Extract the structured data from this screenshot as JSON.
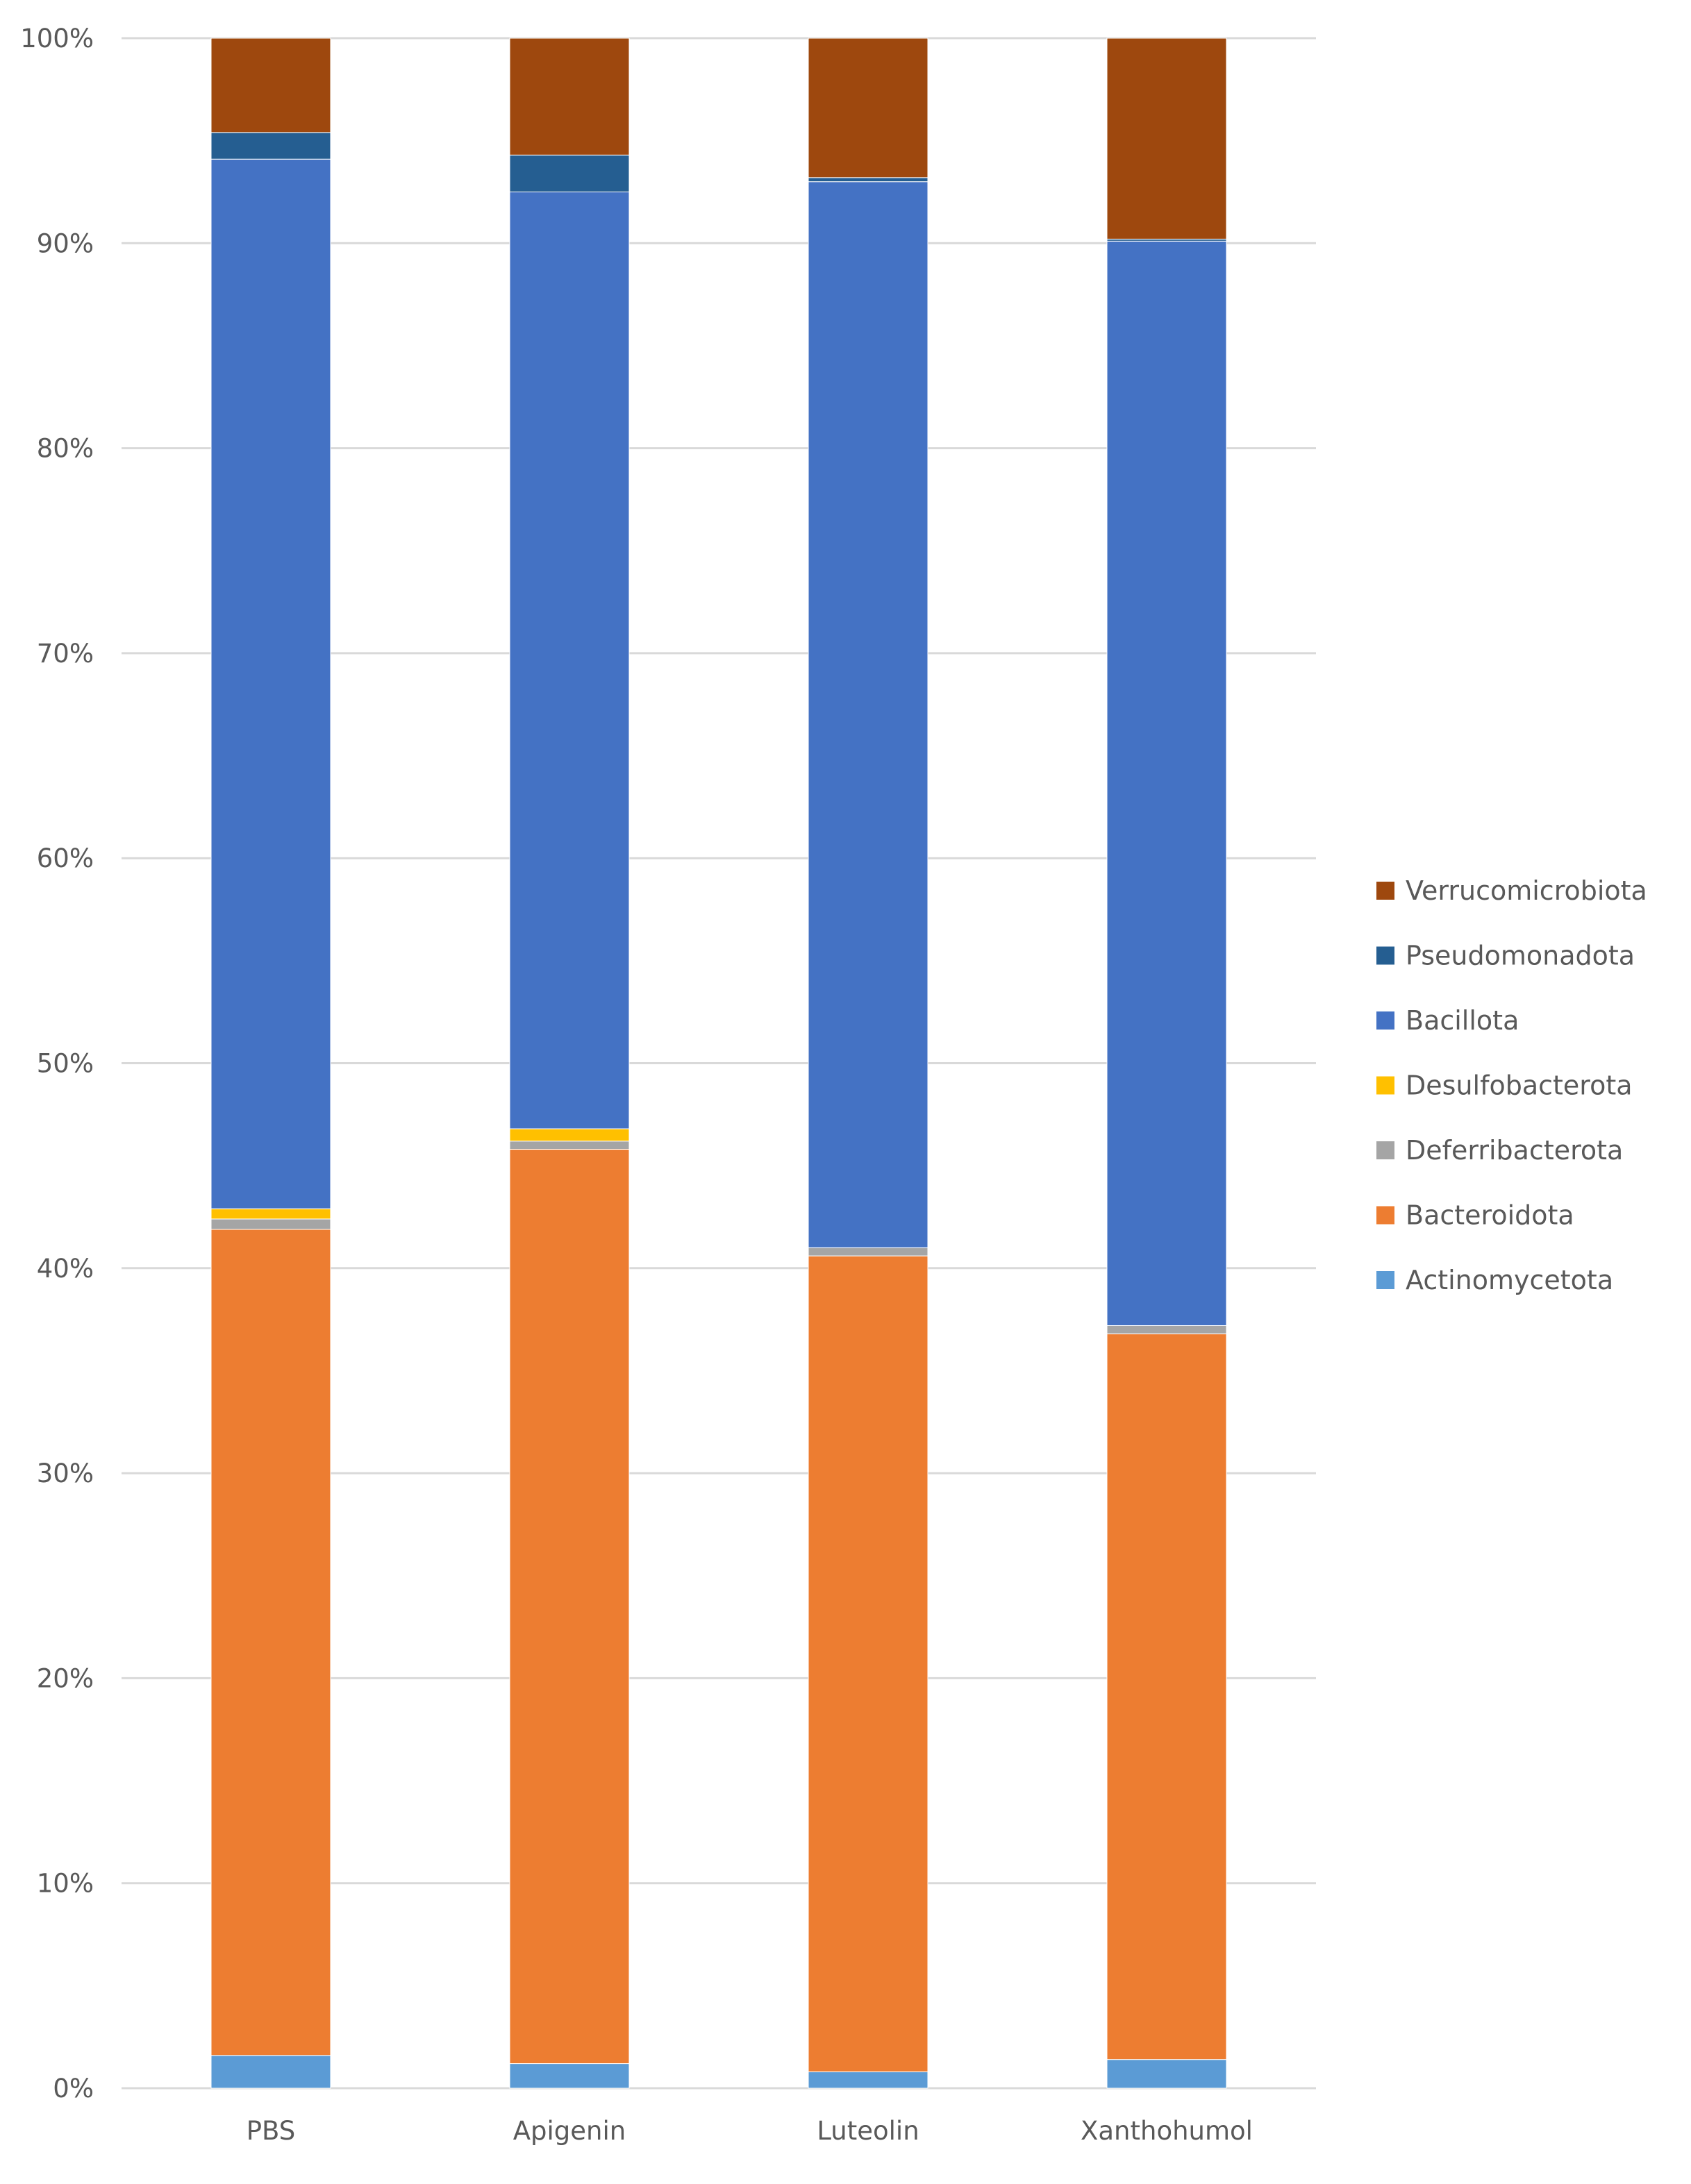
{
  "chart_data": {
    "type": "bar",
    "stacked": "percent",
    "title": "",
    "xlabel": "",
    "ylabel": "",
    "ylim": [
      0,
      100
    ],
    "y_ticks": [
      "0%",
      "10%",
      "20%",
      "30%",
      "40%",
      "50%",
      "60%",
      "70%",
      "80%",
      "90%",
      "100%"
    ],
    "grid": true,
    "legend_position": "right",
    "categories": [
      "PBS",
      "Apigenin",
      "Luteolin",
      "Xanthohumol"
    ],
    "series": [
      {
        "name": "Actinomycetota",
        "color": "#5b9bd5",
        "values": [
          1.6,
          1.2,
          0.8,
          1.4
        ]
      },
      {
        "name": "Bacteroidota",
        "color": "#ed7d31",
        "values": [
          40.3,
          44.6,
          39.8,
          35.4
        ]
      },
      {
        "name": "Deferribacterota",
        "color": "#a5a5a5",
        "values": [
          0.5,
          0.4,
          0.4,
          0.4
        ]
      },
      {
        "name": "Desulfobacterota",
        "color": "#ffc000",
        "values": [
          0.5,
          0.6,
          0.0,
          0.0
        ]
      },
      {
        "name": "Bacillota",
        "color": "#4472c4",
        "values": [
          51.2,
          45.7,
          52.0,
          52.9
        ]
      },
      {
        "name": "Pseudomonadota",
        "color": "#255e91",
        "values": [
          1.3,
          1.8,
          0.2,
          0.1
        ]
      },
      {
        "name": "Verrucomicrobiota",
        "color": "#9e480e",
        "values": [
          4.6,
          5.7,
          6.8,
          9.8
        ]
      }
    ]
  }
}
